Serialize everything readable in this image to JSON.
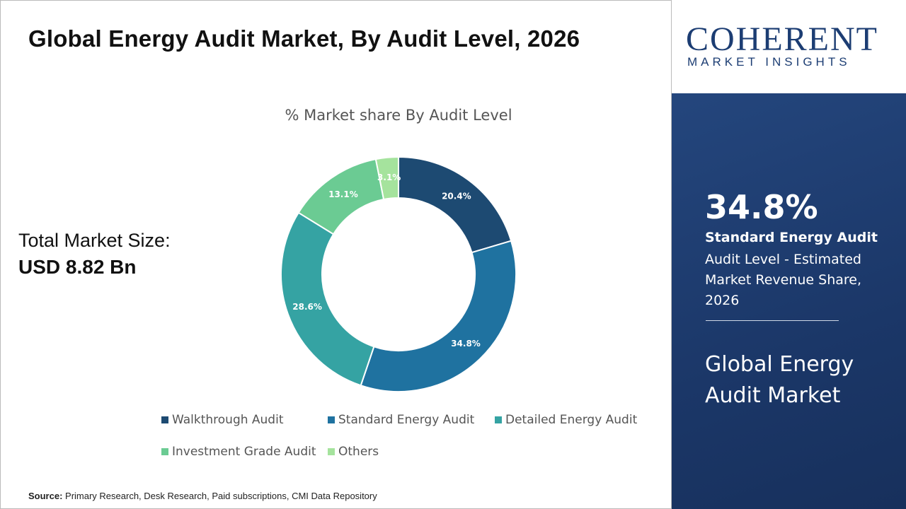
{
  "title": "Global Energy Audit Market, By Audit Level, 2026",
  "market_size": {
    "label": "Total Market Size:",
    "value": "USD 8.82 Bn"
  },
  "logo": {
    "name": "COHERENT",
    "tagline": "MARKET INSIGHTS"
  },
  "highlight": {
    "value": "34.8%",
    "segment": "Standard Energy Audit",
    "description": "Audit Level - Estimated Market Revenue Share, 2026",
    "market": "Global Energy Audit Market"
  },
  "source": {
    "label": "Source:",
    "text": "Primary Research, Desk Research, Paid subscriptions, CMI Data Repository"
  },
  "chart_data": {
    "type": "donut",
    "subtitle": "% Market share By Audit Level",
    "categories": [
      "Walkthrough Audit",
      "Standard Energy Audit",
      "Detailed Energy Audit",
      "Investment Grade Audit",
      "Others"
    ],
    "values": [
      20.4,
      34.8,
      28.6,
      13.1,
      3.1
    ],
    "value_labels": [
      "20.4%",
      "34.8%",
      "28.6%",
      "13.1%",
      "3.1%"
    ],
    "colors": [
      "#1d4a72",
      "#1f72a0",
      "#35a3a3",
      "#6bcb93",
      "#a5e39d"
    ]
  }
}
